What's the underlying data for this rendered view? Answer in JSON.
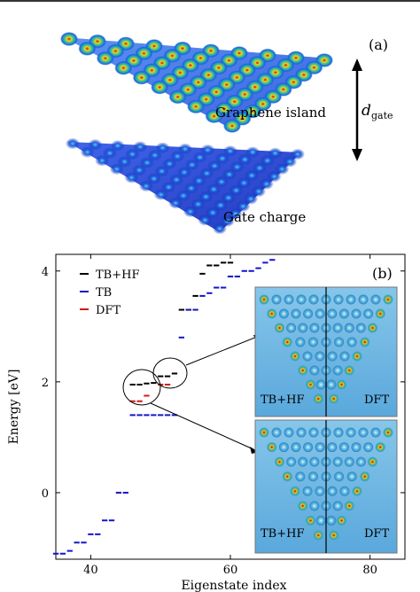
{
  "panel_a": {
    "label": "(a)",
    "island_label": "Graphene island",
    "gate_label": "Gate charge",
    "d_symbol": "d",
    "d_subscript": "gate"
  },
  "panel_b": {
    "label": "(b)",
    "inset_top": {
      "left_label": "TB+HF",
      "right_label": "DFT"
    },
    "inset_bottom": {
      "left_label": "TB+HF",
      "right_label": "DFT"
    }
  },
  "chart_data": {
    "type": "scatter",
    "title": "",
    "xlabel": "Eigenstate index",
    "ylabel": "Energy [eV]",
    "xlim": [
      35,
      85
    ],
    "ylim": [
      -1.2,
      4.3
    ],
    "xticks": [
      40,
      60,
      80
    ],
    "yticks": [
      0,
      2,
      4
    ],
    "legend": {
      "position": "top-left",
      "entries": [
        "TB+HF",
        "TB",
        "DFT"
      ]
    },
    "series": [
      {
        "name": "TB+HF",
        "color": "#000000",
        "points": [
          [
            46,
            1.95
          ],
          [
            47,
            1.95
          ],
          [
            48,
            1.97
          ],
          [
            49,
            1.98
          ],
          [
            50,
            2.1
          ],
          [
            51,
            2.1
          ],
          [
            52,
            2.15
          ],
          [
            53,
            3.3
          ],
          [
            54,
            3.3
          ],
          [
            55,
            3.55
          ],
          [
            56,
            3.95
          ],
          [
            57,
            4.1
          ],
          [
            58,
            4.1
          ],
          [
            59,
            4.15
          ],
          [
            60,
            4.15
          ]
        ]
      },
      {
        "name": "TB",
        "color": "#1515c8",
        "points": [
          [
            35,
            -1.1
          ],
          [
            36,
            -1.1
          ],
          [
            37,
            -1.05
          ],
          [
            38,
            -0.9
          ],
          [
            39,
            -0.9
          ],
          [
            40,
            -0.75
          ],
          [
            41,
            -0.75
          ],
          [
            42,
            -0.5
          ],
          [
            43,
            -0.5
          ],
          [
            44,
            0.0
          ],
          [
            45,
            0.0
          ],
          [
            46,
            1.4
          ],
          [
            47,
            1.4
          ],
          [
            48,
            1.4
          ],
          [
            49,
            1.4
          ],
          [
            50,
            1.4
          ],
          [
            51,
            1.4
          ],
          [
            52,
            1.4
          ],
          [
            53,
            2.8
          ],
          [
            54,
            3.3
          ],
          [
            55,
            3.3
          ],
          [
            56,
            3.55
          ],
          [
            57,
            3.6
          ],
          [
            58,
            3.7
          ],
          [
            59,
            3.7
          ],
          [
            60,
            3.9
          ],
          [
            61,
            3.9
          ],
          [
            62,
            4.0
          ],
          [
            63,
            4.0
          ],
          [
            64,
            4.05
          ],
          [
            65,
            4.15
          ],
          [
            66,
            4.2
          ]
        ]
      },
      {
        "name": "DFT",
        "color": "#d41818",
        "points": [
          [
            46,
            1.65
          ],
          [
            47,
            1.65
          ],
          [
            48,
            1.75
          ],
          [
            50,
            1.95
          ],
          [
            51,
            1.95
          ]
        ]
      }
    ]
  }
}
